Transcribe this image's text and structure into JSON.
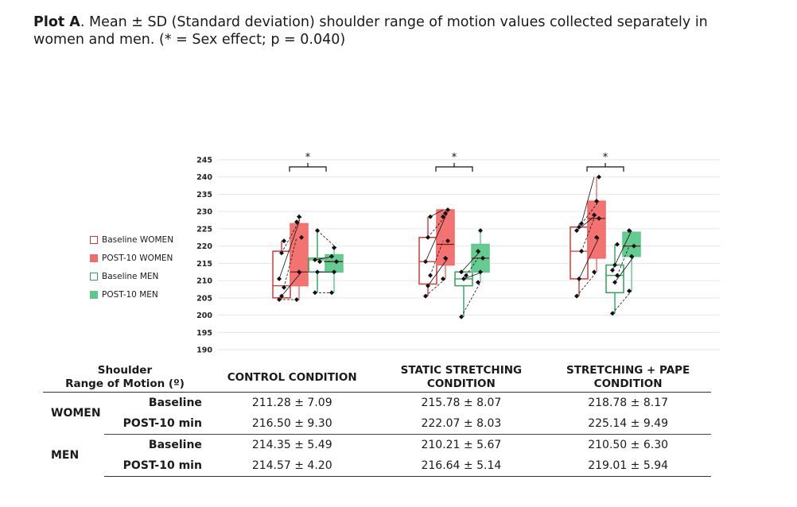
{
  "caption": {
    "label": "Plot A",
    "text": ". Mean ± SD (Standard deviation) shoulder range of motion values collected separately in women and men. (* = Sex effect; p = 0.040)"
  },
  "colors": {
    "baseline_women": "#d23a3a",
    "post_women": "#f26b6b",
    "baseline_men": "#2fa35a",
    "post_men": "#5cc98a"
  },
  "legend": [
    {
      "label": "Baseline WOMEN",
      "key": "baseline_women",
      "filled": false
    },
    {
      "label": "POST-10 WOMEN",
      "key": "post_women",
      "filled": true
    },
    {
      "label": "Baseline MEN",
      "key": "baseline_men",
      "filled": false
    },
    {
      "label": "POST-10 MEN",
      "key": "post_men",
      "filled": true
    }
  ],
  "chart_data": {
    "type": "box",
    "ylim": [
      190,
      245
    ],
    "yticks": [
      190,
      195,
      200,
      205,
      210,
      215,
      220,
      225,
      230,
      235,
      240,
      245
    ],
    "significance_marker": "*",
    "groups": [
      {
        "name": "CONTROL CONDITION",
        "boxes": [
          {
            "series": "Baseline WOMEN",
            "min": 204.5,
            "q1": 205,
            "median": 208.5,
            "q3": 218.5,
            "max": 221.5,
            "points": [
              204.5,
              205.5,
              208,
              210.5,
              218,
              221.5
            ]
          },
          {
            "series": "POST-10 WOMEN",
            "min": 204.5,
            "q1": 208.5,
            "median": 212.5,
            "q3": 226.5,
            "max": 228.5,
            "points": [
              204.5,
              212.5,
              222.5,
              227,
              228.5
            ]
          },
          {
            "series": "Baseline MEN",
            "min": 206.5,
            "q1": 212.5,
            "median": 216,
            "q3": 216.5,
            "max": 224.5,
            "points": [
              206.5,
              212.5,
              215.5,
              216,
              224.5
            ]
          },
          {
            "series": "POST-10 MEN",
            "min": 206.5,
            "q1": 212.5,
            "median": 215.5,
            "q3": 217.5,
            "max": 219.5,
            "points": [
              206.5,
              212.5,
              215.5,
              217,
              219.5
            ]
          }
        ]
      },
      {
        "name": "STATIC STRETCHING CONDITION",
        "boxes": [
          {
            "series": "Baseline WOMEN",
            "min": 205.5,
            "q1": 209,
            "median": 215.5,
            "q3": 222.5,
            "max": 228.5,
            "points": [
              205.5,
              208.5,
              211.5,
              215.5,
              222.5,
              228.5
            ]
          },
          {
            "series": "POST-10 WOMEN",
            "min": 210.5,
            "q1": 214.5,
            "median": 220.5,
            "q3": 230.5,
            "max": 230.5,
            "points": [
              210.5,
              216.5,
              221.5,
              228.5,
              229.5,
              230.5
            ]
          },
          {
            "series": "Baseline MEN",
            "min": 199.5,
            "q1": 208.5,
            "median": 210.5,
            "q3": 212.5,
            "max": 212.5,
            "points": [
              199.5,
              210.5,
              211.5,
              212.5
            ]
          },
          {
            "series": "POST-10 MEN",
            "min": 209.5,
            "q1": 212.5,
            "median": 216.5,
            "q3": 220.5,
            "max": 224.5,
            "points": [
              209.5,
              212.5,
              216.5,
              218.5,
              224.5
            ]
          }
        ]
      },
      {
        "name": "STRETCHING + PAPE CONDITION",
        "boxes": [
          {
            "series": "Baseline WOMEN",
            "min": 205.5,
            "q1": 210.5,
            "median": 218.5,
            "q3": 225.5,
            "max": 226.5,
            "points": [
              205.5,
              210.5,
              218.5,
              224.5,
              225.5,
              226.5
            ]
          },
          {
            "series": "POST-10 WOMEN",
            "min": 212.5,
            "q1": 216.5,
            "median": 228,
            "q3": 233,
            "max": 240,
            "points": [
              212.5,
              222.5,
              228,
              229,
              233,
              240
            ]
          },
          {
            "series": "Baseline MEN",
            "min": 200.5,
            "q1": 206.5,
            "median": 211.5,
            "q3": 214.5,
            "max": 220.5,
            "points": [
              200.5,
              209.5,
              211.5,
              213,
              214.5,
              220.5
            ]
          },
          {
            "series": "POST-10 MEN",
            "min": 207,
            "q1": 217,
            "median": 220,
            "q3": 224,
            "max": 224.5,
            "points": [
              207,
              217,
              220,
              224.5
            ]
          }
        ]
      }
    ]
  },
  "table": {
    "header_label": "Shoulder\nRange of Motion (º)",
    "columns": [
      "CONTROL CONDITION",
      "STATIC STRETCHING\nCONDITION",
      "STRETCHING + PAPE\nCONDITION"
    ],
    "groups": [
      {
        "name": "WOMEN",
        "rows": [
          {
            "label": "Baseline",
            "values": [
              "211.28 ± 7.09",
              "215.78 ± 8.07",
              "218.78 ± 8.17"
            ]
          },
          {
            "label": "POST-10 min",
            "values": [
              "216.50 ± 9.30",
              "222.07 ± 8.03",
              "225.14 ± 9.49"
            ]
          }
        ]
      },
      {
        "name": "MEN",
        "rows": [
          {
            "label": "Baseline",
            "values": [
              "214.35 ± 5.49",
              "210.21 ± 5.67",
              "210.50 ± 6.30"
            ]
          },
          {
            "label": "POST-10 min",
            "values": [
              "214.57 ± 4.20",
              "216.64 ± 5.14",
              "219.01 ± 5.94"
            ]
          }
        ]
      }
    ]
  }
}
